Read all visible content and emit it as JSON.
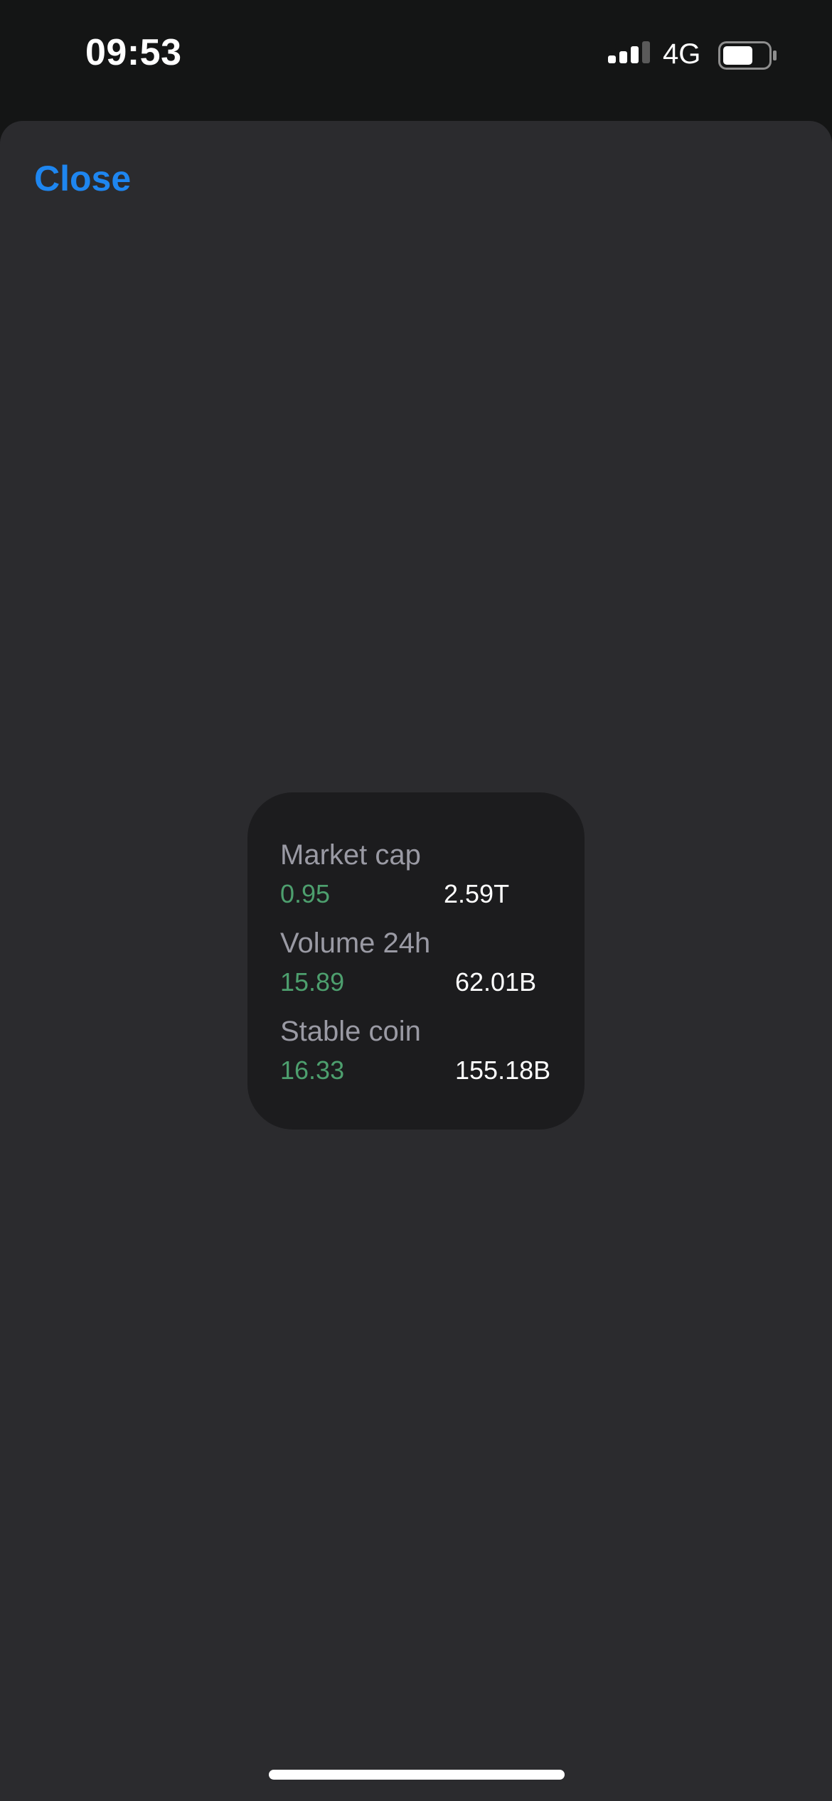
{
  "status_bar": {
    "time": "09:53",
    "network": "4G",
    "signal_icon": "cellular-signal-icon",
    "battery_icon": "battery-icon"
  },
  "sheet": {
    "close_label": "Close"
  },
  "widget": {
    "metrics": [
      {
        "label": "Market cap",
        "change": "0.95",
        "value": "2.59T"
      },
      {
        "label": "Volume 24h",
        "change": "15.89",
        "value": "62.01B"
      },
      {
        "label": "Stable coin",
        "change": "16.33",
        "value": "155.18B"
      }
    ]
  },
  "colors": {
    "accent": "#1e86f0",
    "positive": "#4d9f6e",
    "sheet_background": "#2b2b2e",
    "card_background": "#1c1c1e"
  }
}
